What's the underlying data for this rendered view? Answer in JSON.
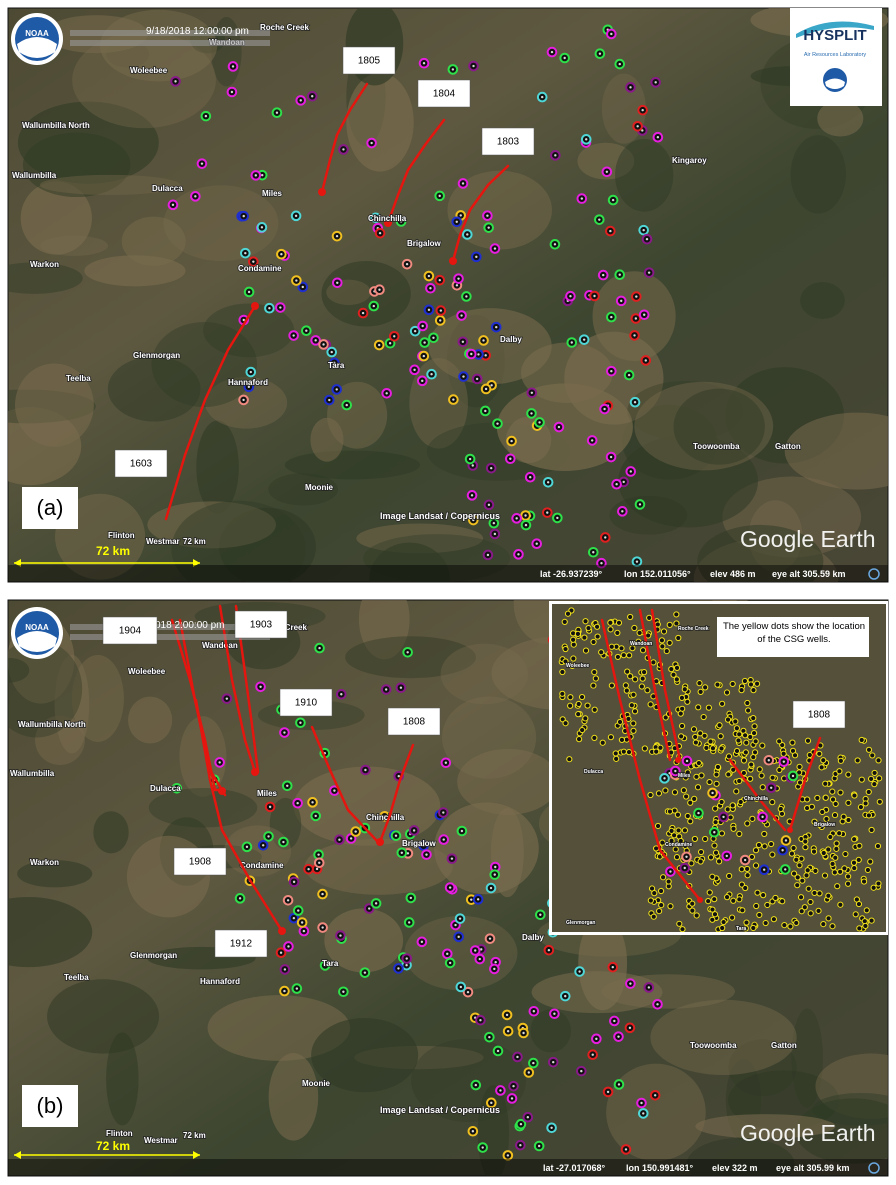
{
  "hysplit": {
    "title": "HYSPLIT",
    "subtitle": "Air Resources Laboratory"
  },
  "panels": [
    {
      "label": "(a)",
      "timestamp": "9/18/2018 12:00:00 pm",
      "trajectories": [
        "1805",
        "1804",
        "1803",
        "1603"
      ],
      "towns": [
        "Roche Creek",
        "Wandoan",
        "Woleebee",
        "Wallumbilla North",
        "Wallumbilla",
        "Dulacca",
        "Miles",
        "Chinchilla",
        "Brigalow",
        "Warkon",
        "Condamine",
        "Dalby",
        "Glenmorgan",
        "Tara",
        "Teelba",
        "Hannaford",
        "Kingaroy",
        "Toowoomba",
        "Gatton",
        "Moonie",
        "Flinton",
        "Westmar"
      ],
      "scale_label": "72 km",
      "scale_end": "72 km",
      "attribution": "Image Landsat / Copernicus",
      "brand": "Google Earth",
      "status": {
        "lat": "lat  -26.937239°",
        "lon": "lon  152.011056°",
        "elev": "elev   486 m",
        "eye": "eye alt 305.59 km"
      }
    },
    {
      "label": "(b)",
      "timestamp": "018  2:00:00 pm",
      "trajectories": [
        "1904",
        "1903",
        "1910",
        "1808",
        "1908",
        "1912"
      ],
      "towns": [
        "Roche Creek",
        "Wandoan",
        "Woleebee",
        "Wallumbilla North",
        "Wallumbilla",
        "Dulacca",
        "Miles",
        "Chinchilla",
        "Brigalow",
        "Warkon",
        "Condamine",
        "Dalby",
        "Glenmorgan",
        "Teelba",
        "Hannaford",
        "Tara",
        "Toowoomba",
        "Gatton",
        "Moonie",
        "Flinton",
        "Westmar"
      ],
      "scale_label": "72 km",
      "scale_end": "72 km",
      "attribution": "Image Landsat / Copernicus",
      "brand": "Google Earth",
      "status": {
        "lat": "lat  -27.017068°",
        "lon": "lon  150.991481°",
        "elev": "elev   322 m",
        "eye": "eye alt 305.99 km"
      }
    }
  ],
  "inset": {
    "note": "The yellow dots show the location of the CSG wells.",
    "trajectory": "1808",
    "towns": [
      "Roche Creek",
      "Wandoan",
      "Woleebee",
      "Dulacca",
      "Miles",
      "Chinchilla",
      "Brigalow",
      "Condamine",
      "Glenmorgan",
      "Tara"
    ]
  }
}
